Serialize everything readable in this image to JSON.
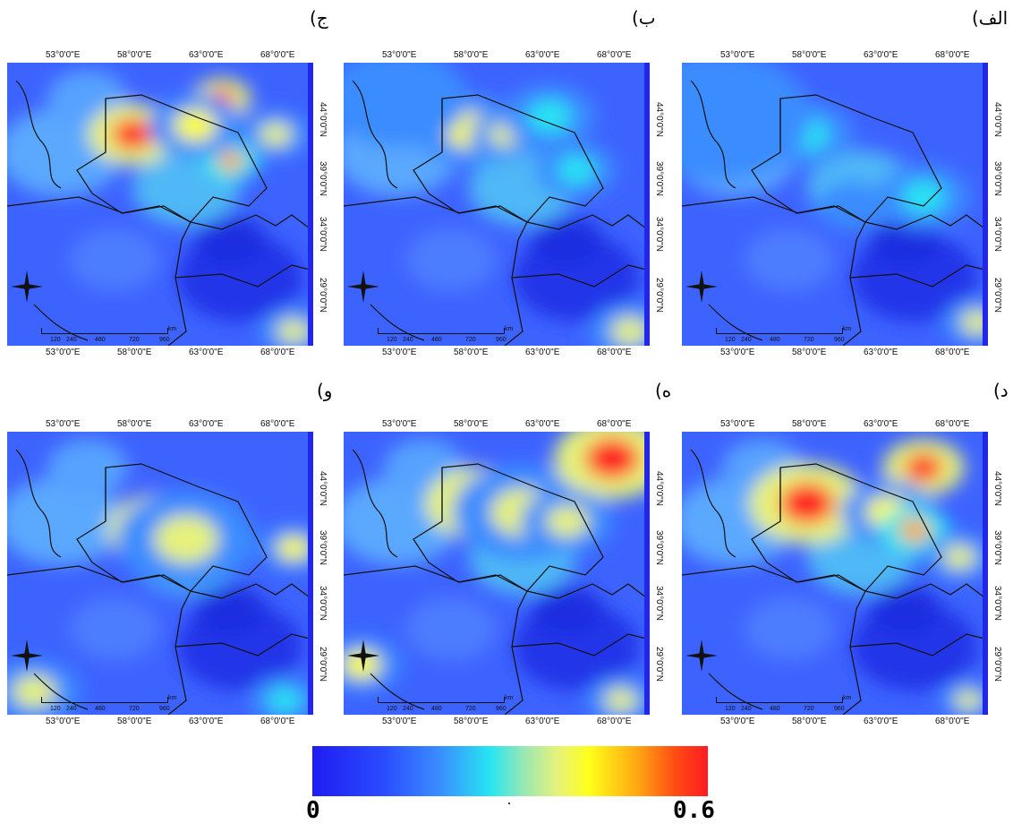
{
  "panels": [
    {
      "id": "alef",
      "label": "الف)"
    },
    {
      "id": "be",
      "label": "ب)"
    },
    {
      "id": "jim",
      "label": "ج)"
    },
    {
      "id": "dal",
      "label": "د)"
    },
    {
      "id": "he",
      "label": "ه)"
    },
    {
      "id": "vav",
      "label": "و)"
    }
  ],
  "axes": {
    "lon_ticks": [
      "53°0'0\"E",
      "58°0'0\"E",
      "63°0'0\"E",
      "68°0'0\"E"
    ],
    "lat_ticks": [
      "44°0'0\"N",
      "39°0'0\"N",
      "34°0'0\"N",
      "29°0'0\"N"
    ]
  },
  "scale_bar": {
    "ticks": [
      "120",
      "240",
      "480",
      "720",
      "960"
    ],
    "unit": "km"
  },
  "colorbar": {
    "min_label": "0",
    "max_label": "0.6",
    "colors": [
      "#1f1cf2",
      "#2a4cff",
      "#3a8cff",
      "#27e5f2",
      "#e6f27a",
      "#ffff1a",
      "#ffa812",
      "#ff1c22"
    ]
  }
}
